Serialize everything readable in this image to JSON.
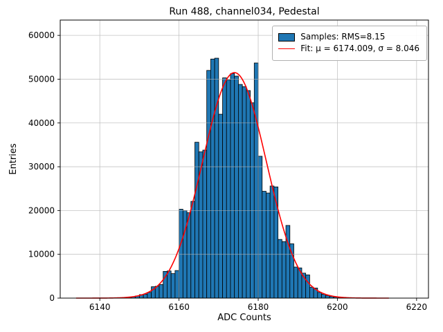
{
  "chart_data": {
    "type": "bar",
    "subtype": "histogram",
    "title": "Run 488, channel034, Pedestal",
    "xlabel": "ADC Counts",
    "ylabel": "Entries",
    "xlim": [
      6130,
      6223
    ],
    "ylim": [
      0,
      63500
    ],
    "xticks": [
      6140,
      6160,
      6180,
      6200,
      6220
    ],
    "yticks": [
      0,
      10000,
      20000,
      30000,
      40000,
      50000,
      60000
    ],
    "grid": true,
    "bin_width": 1,
    "bin_start": 6147,
    "bins": [
      150,
      300,
      500,
      800,
      900,
      1300,
      2600,
      2700,
      3100,
      6100,
      6200,
      5600,
      6300,
      20300,
      20000,
      19500,
      22100,
      35600,
      33400,
      33800,
      52000,
      54600,
      54800,
      42000,
      50300,
      49800,
      51300,
      50700,
      48800,
      48300,
      47400,
      44600,
      53700,
      32400,
      24400,
      24000,
      25600,
      25400,
      13400,
      12900,
      16600,
      12400,
      7100,
      6900,
      5700,
      5300,
      2500,
      2300,
      1300,
      900,
      600,
      400,
      250,
      120
    ],
    "fit": {
      "mu": 6174.009,
      "sigma": 8.046,
      "amplitude": 51500,
      "x_range": [
        6134,
        6213
      ]
    },
    "legend": [
      {
        "label": "Samples: RMS=8.15",
        "type": "patch",
        "color": "#1f77b4"
      },
      {
        "label": "Fit: μ = 6174.009, σ = 8.046",
        "type": "line",
        "color": "#ff0000"
      }
    ],
    "colors": {
      "bar_fill": "#1f77b4",
      "bar_edge": "#000000",
      "fit_line": "#ff0000",
      "grid": "#b0b0b0",
      "axes": "#000000"
    },
    "legend_position": "upper right"
  }
}
